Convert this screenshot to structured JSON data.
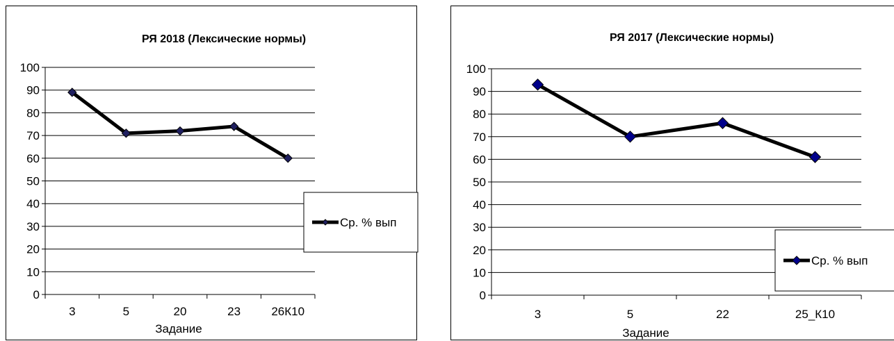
{
  "chart_data": [
    {
      "type": "line",
      "title": "РЯ 2018 (Лексические нормы)",
      "xlabel": "Задание",
      "ylabel": "",
      "ylim": [
        0,
        100
      ],
      "yticks": [
        "0",
        "10",
        "20",
        "30",
        "40",
        "50",
        "60",
        "70",
        "80",
        "90",
        "100"
      ],
      "categories": [
        "3",
        "5",
        "20",
        "23",
        "26К10"
      ],
      "series": [
        {
          "name": "Ср. % вып",
          "values": [
            89,
            71,
            72,
            74,
            60
          ],
          "color": "#000000",
          "marker_color": "#1f1f5f"
        }
      ],
      "grid": true,
      "legend": "right"
    },
    {
      "type": "line",
      "title": "РЯ 2017 (Лексические нормы)",
      "xlabel": "Задание",
      "ylabel": "",
      "ylim": [
        0,
        100
      ],
      "yticks": [
        "0",
        "10",
        "20",
        "30",
        "40",
        "50",
        "60",
        "70",
        "80",
        "90",
        "100"
      ],
      "categories": [
        "3",
        "5",
        "22",
        "25_К10"
      ],
      "series": [
        {
          "name": "Ср. % вып",
          "values": [
            93,
            70,
            76,
            61
          ],
          "color": "#000000",
          "marker_color": "#00008b"
        }
      ],
      "grid": true,
      "legend": "right"
    }
  ]
}
